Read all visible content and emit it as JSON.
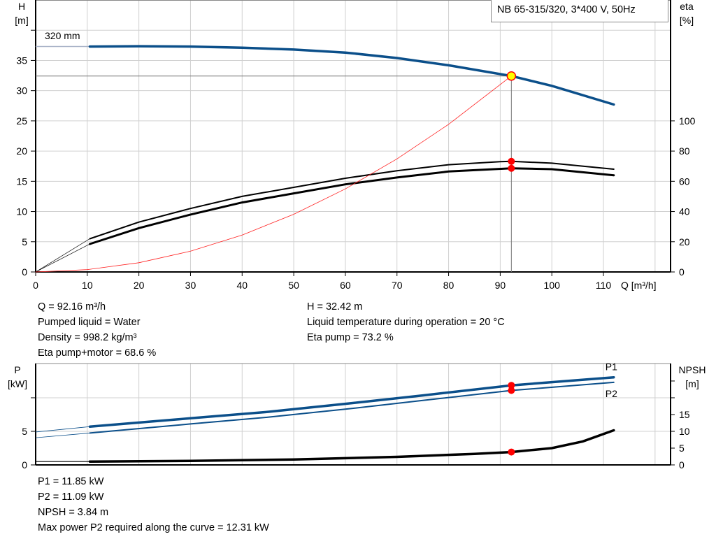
{
  "title": "NB 65-315/320, 3*400 V, 50Hz",
  "colors": {
    "head": "#0b4f8a",
    "power": "#0b4f8a",
    "efficiency": "#000000",
    "npsh": "#000000",
    "system": "#ff2020",
    "duty_point_fill": "#ffff00",
    "duty_point_stroke": "#ff0000",
    "point": "#ff0000",
    "grid": "#d0d0d0"
  },
  "chart_data": [
    {
      "type": "line",
      "xlabel": "Q [m³/h]",
      "ylabel": "H\n[m]",
      "y_axis_label_top": "H",
      "y_axis_unit": "[m]",
      "y2_axis_label_top": "eta",
      "y2_axis_unit": "[%]",
      "xlim": [
        0,
        123
      ],
      "ylim": [
        0,
        45
      ],
      "y2lim": [
        0,
        180
      ],
      "x_ticks": [
        0,
        10,
        20,
        30,
        40,
        50,
        60,
        70,
        80,
        90,
        100,
        110
      ],
      "y_ticks": [
        0,
        5,
        10,
        15,
        20,
        25,
        30,
        35
      ],
      "y2_ticks": [
        0,
        20,
        40,
        60,
        80,
        100
      ],
      "grid": true,
      "annotation": "320 mm",
      "series": [
        {
          "key": "H",
          "axis": "left",
          "x": [
            10.5,
            20,
            30,
            40,
            50,
            60,
            70,
            80,
            92.16,
            100,
            112
          ],
          "y": [
            37.3,
            37.35,
            37.3,
            37.1,
            36.8,
            36.3,
            35.4,
            34.2,
            32.42,
            30.8,
            27.7
          ],
          "extension_y0": 37.3
        },
        {
          "key": "eta_pump",
          "axis": "right",
          "x": [
            10.5,
            20,
            30,
            40,
            50,
            60,
            70,
            80,
            90,
            92.16,
            100,
            112
          ],
          "y": [
            22,
            33,
            42,
            50,
            56,
            62,
            67,
            71,
            73,
            73.2,
            72,
            68
          ]
        },
        {
          "key": "eta_pump_motor",
          "axis": "right",
          "x": [
            10.5,
            20,
            30,
            40,
            50,
            60,
            70,
            80,
            92.16,
            100,
            112
          ],
          "y": [
            18.5,
            29,
            38,
            46,
            52,
            58,
            62.5,
            66.5,
            68.6,
            68,
            64
          ]
        },
        {
          "key": "system_curve",
          "axis": "left",
          "x": [
            0,
            10,
            20,
            30,
            40,
            50,
            60,
            70,
            80,
            92.16
          ],
          "y": [
            0,
            0.38,
            1.53,
            3.43,
            6.11,
            9.54,
            13.74,
            18.7,
            24.43,
            32.42
          ]
        }
      ],
      "duty_point": {
        "x": 92.16,
        "y": 32.42
      }
    },
    {
      "type": "line",
      "ylabel": "P\n[kW]",
      "y_axis_label_top": "P",
      "y_axis_unit": "[kW]",
      "y2_axis_label_top": "NPSH",
      "y2_axis_unit": "[m]",
      "xlim": [
        0,
        123
      ],
      "ylim": [
        0,
        15.1
      ],
      "y2lim": [
        0,
        30.2
      ],
      "y_ticks": [
        0,
        5
      ],
      "y2_ticks": [
        0,
        5,
        10,
        15
      ],
      "grid": true,
      "series": [
        {
          "name": "P1",
          "axis": "left",
          "x": [
            10.5,
            30,
            45,
            60,
            75,
            92.16,
            112
          ],
          "y": [
            5.7,
            6.95,
            7.9,
            9.1,
            10.35,
            11.85,
            13.05
          ],
          "extension_y0": 4.9
        },
        {
          "name": "P2",
          "axis": "left",
          "x": [
            10.5,
            30,
            45,
            60,
            75,
            92.16,
            112
          ],
          "y": [
            4.75,
            6.1,
            7.1,
            8.3,
            9.6,
            11.09,
            12.3
          ],
          "extension_y0": 4.05
        },
        {
          "key": "NPSH",
          "axis": "right",
          "x": [
            10.5,
            30,
            50,
            70,
            85,
            92.16,
            100,
            106,
            112
          ],
          "y": [
            1.0,
            1.2,
            1.6,
            2.4,
            3.3,
            3.84,
            5.0,
            7.0,
            10.3
          ],
          "extension_y0": 1.0
        }
      ],
      "points": {
        "x": 92.16,
        "P1": 11.85,
        "P2": 11.09,
        "NPSH": 3.84
      }
    }
  ],
  "info_top": {
    "left": [
      "Q = 92.16 m³/h",
      "Pumped liquid = Water",
      "Density = 998.2 kg/m³",
      "Eta pump+motor = 68.6 %"
    ],
    "right": [
      "H = 32.42 m",
      "Liquid temperature during operation = 20 °C",
      "Eta pump = 73.2 %"
    ]
  },
  "info_bottom": [
    "P1 = 11.85 kW",
    "P2 = 11.09 kW",
    "NPSH = 3.84 m",
    "Max power P2 required along the curve = 12.31 kW"
  ]
}
